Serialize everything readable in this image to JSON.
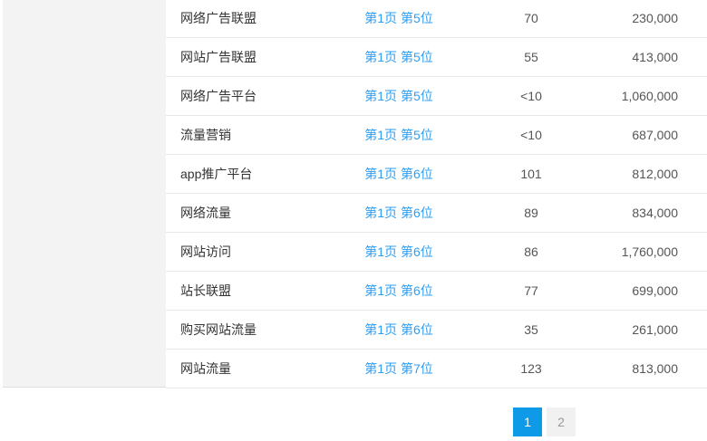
{
  "colors": {
    "link_blue": "#2f9df0",
    "active_page_blue": "#0f9ae8",
    "sidebar_gray": "#f3f3f3",
    "row_border": "#e8e8e8",
    "keyword_text": "#333333",
    "number_text": "#555555",
    "inactive_page_bg": "#f1f1f1",
    "inactive_page_text": "#999999"
  },
  "table": {
    "rows": [
      {
        "keyword": "网络广告联盟",
        "rank": "第1页 第5位",
        "index": "70",
        "volume": "230,000"
      },
      {
        "keyword": "网站广告联盟",
        "rank": "第1页 第5位",
        "index": "55",
        "volume": "413,000"
      },
      {
        "keyword": "网络广告平台",
        "rank": "第1页 第5位",
        "index": "<10",
        "volume": "1,060,000"
      },
      {
        "keyword": "流量营销",
        "rank": "第1页 第5位",
        "index": "<10",
        "volume": "687,000"
      },
      {
        "keyword": "app推广平台",
        "rank": "第1页 第6位",
        "index": "101",
        "volume": "812,000"
      },
      {
        "keyword": "网络流量",
        "rank": "第1页 第6位",
        "index": "89",
        "volume": "834,000"
      },
      {
        "keyword": "网站访问",
        "rank": "第1页 第6位",
        "index": "86",
        "volume": "1,760,000"
      },
      {
        "keyword": "站长联盟",
        "rank": "第1页 第6位",
        "index": "77",
        "volume": "699,000"
      },
      {
        "keyword": "购买网站流量",
        "rank": "第1页 第6位",
        "index": "35",
        "volume": "261,000"
      },
      {
        "keyword": "网站流量",
        "rank": "第1页 第7位",
        "index": "123",
        "volume": "813,000"
      }
    ]
  },
  "pagination": {
    "pages": [
      {
        "label": "1",
        "active": true
      },
      {
        "label": "2",
        "active": false
      }
    ]
  }
}
